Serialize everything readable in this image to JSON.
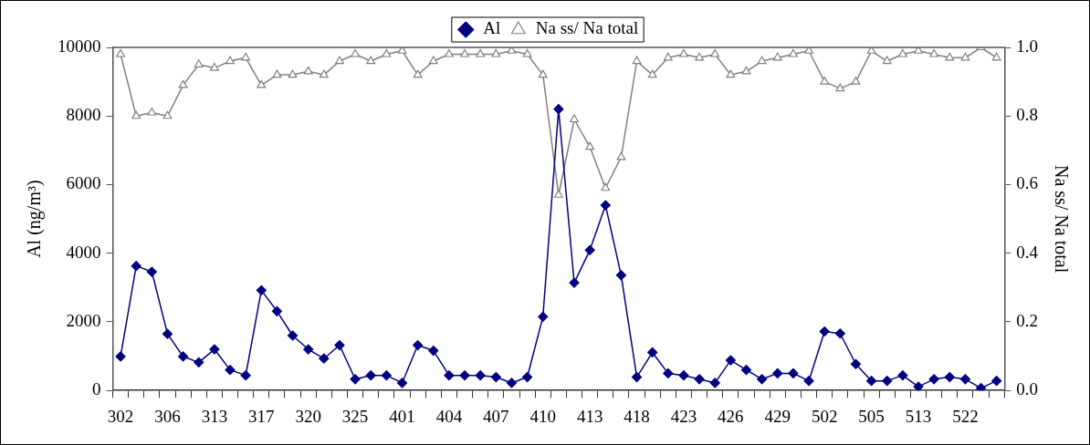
{
  "chart_data": {
    "type": "line",
    "categories": [
      "302",
      null,
      null,
      "306",
      null,
      null,
      "313",
      null,
      null,
      "317",
      null,
      null,
      "320",
      null,
      null,
      "325",
      null,
      null,
      "401",
      null,
      null,
      "404",
      null,
      null,
      "407",
      null,
      null,
      "410",
      null,
      null,
      "413",
      null,
      null,
      "418",
      null,
      null,
      "423",
      null,
      null,
      "426",
      null,
      null,
      "429",
      null,
      null,
      "502",
      null,
      null,
      "505",
      null,
      null,
      "513",
      null,
      null,
      "522",
      null,
      null
    ],
    "ylabel": "Al (ng/m³)",
    "y2label": "Na ss/ Na total",
    "ylim": [
      0,
      10000
    ],
    "yticks": [
      0,
      2000,
      4000,
      6000,
      8000,
      10000
    ],
    "y2lim": [
      0,
      1
    ],
    "y2ticks": [
      {
        "value": 0,
        "label": "0.0"
      },
      {
        "value": 0.2,
        "label": "0.2"
      },
      {
        "value": 0.4,
        "label": "0.4"
      },
      {
        "value": 0.6,
        "label": "0.6"
      },
      {
        "value": 0.8,
        "label": "0.8"
      },
      {
        "value": 1,
        "label": "1.0"
      }
    ],
    "grid": false,
    "legend": "top",
    "series": [
      {
        "name": "Al",
        "color": "#000080",
        "marker": "diamond",
        "values": [
          990,
          3630,
          3460,
          1650,
          990,
          820,
          1200,
          600,
          440,
          2920,
          2310,
          1600,
          1200,
          930,
          1320,
          330,
          440,
          440,
          220,
          1320,
          1160,
          440,
          440,
          440,
          390,
          220,
          390,
          2150,
          8200,
          3140,
          4090,
          5400,
          3360,
          390,
          1110,
          500,
          440,
          330,
          220,
          880,
          600,
          330,
          500,
          500,
          280,
          1720,
          1660,
          770,
          280,
          280,
          440,
          110,
          330,
          390,
          330,
          70,
          280
        ]
      },
      {
        "name": "Na ss/ Na total",
        "color": "#808080",
        "marker": "triangle",
        "axis": "y2",
        "values": [
          0.98,
          0.8,
          0.81,
          0.8,
          0.89,
          0.95,
          0.94,
          0.96,
          0.97,
          0.89,
          0.92,
          0.92,
          0.93,
          0.92,
          0.96,
          0.98,
          0.96,
          0.98,
          0.99,
          0.92,
          0.96,
          0.98,
          0.98,
          0.98,
          0.98,
          0.99,
          0.98,
          0.92,
          0.57,
          0.79,
          0.71,
          0.59,
          0.68,
          0.96,
          0.92,
          0.97,
          0.98,
          0.97,
          0.98,
          0.92,
          0.93,
          0.96,
          0.97,
          0.98,
          0.99,
          0.9,
          0.88,
          0.9,
          0.99,
          0.96,
          0.98,
          0.99,
          0.98,
          0.97,
          0.97,
          1.0,
          0.97
        ]
      }
    ]
  }
}
